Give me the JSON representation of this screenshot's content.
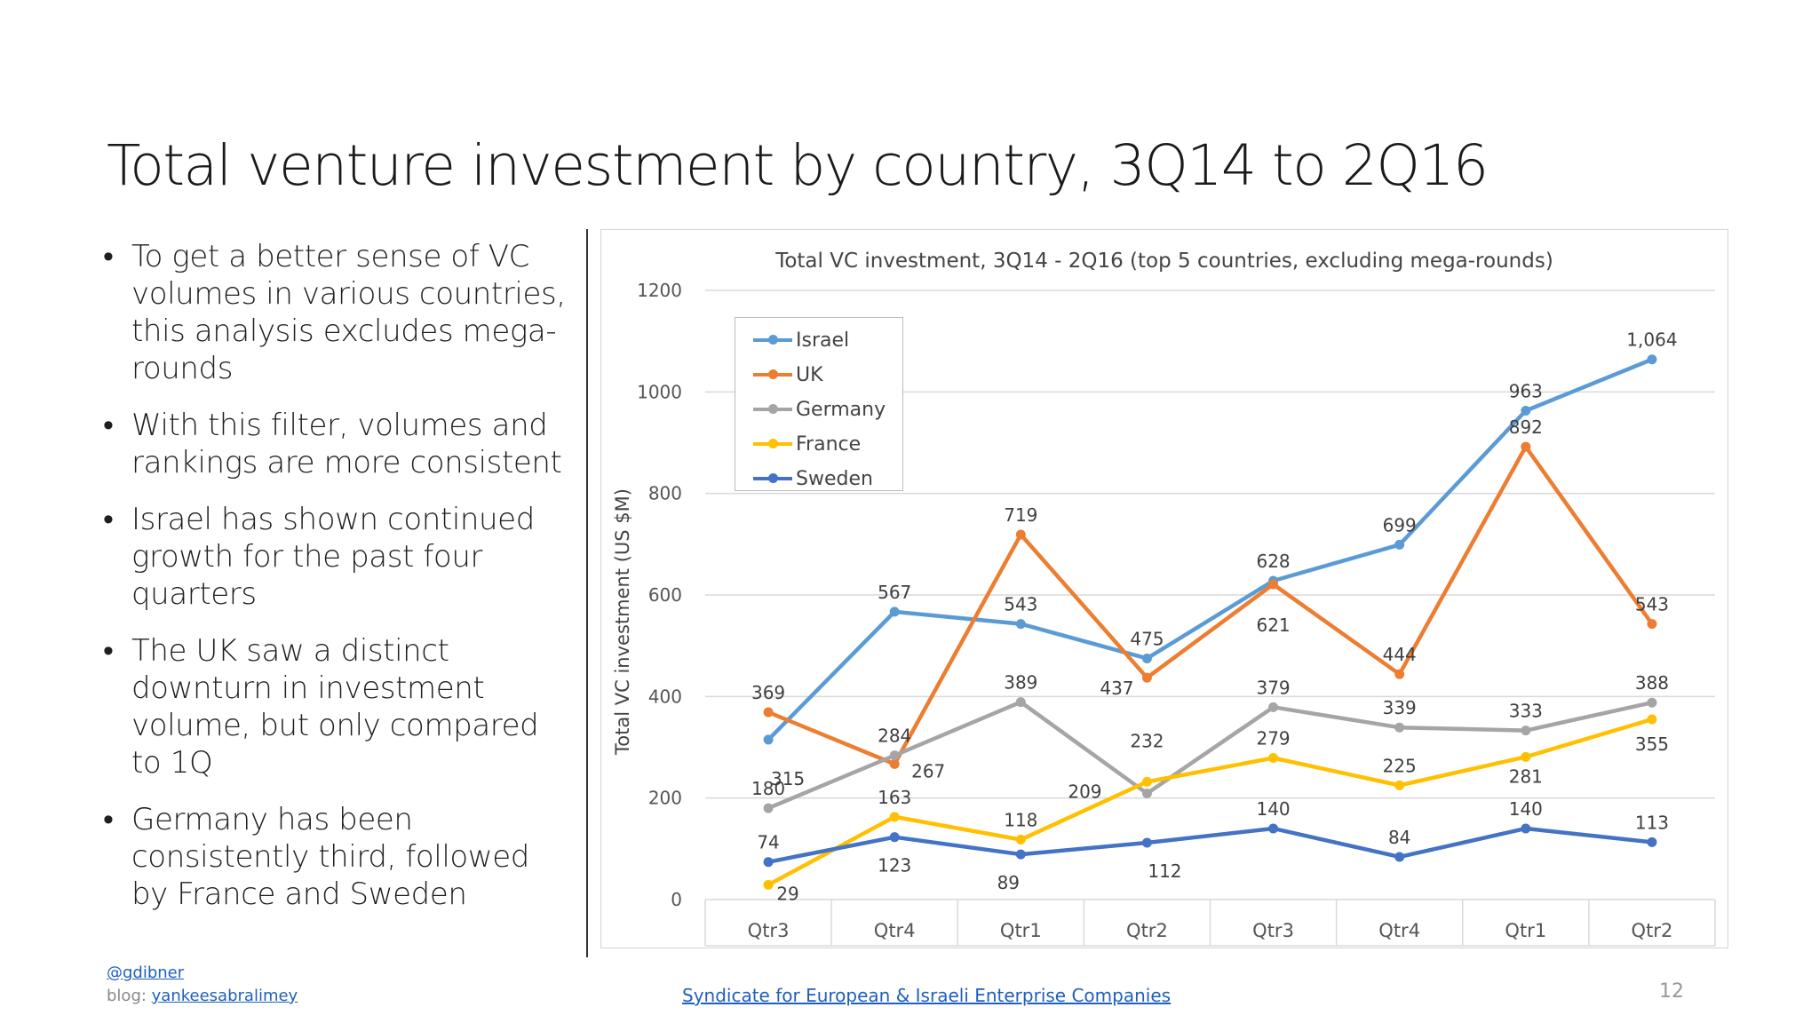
{
  "slide": {
    "title": "Total venture investment by country, 3Q14 to 2Q16",
    "bullets": [
      "To get a better sense of VC volumes in various countries, this analysis excludes mega-rounds",
      "With this filter, volumes and rankings are more consistent",
      "Israel has shown continued growth for the past four quarters",
      "The UK saw a distinct downturn in investment volume, but only compared to 1Q",
      "Germany has been consistently third, followed by France and Sweden"
    ],
    "bullet_symbol": "•",
    "page_number": "12"
  },
  "footer": {
    "handle": "@gdibner",
    "blog_prefix": "blog: ",
    "blog_link": "yankeesabralimey",
    "center_link": "Syndicate for European & Israeli Enterprise Companies"
  },
  "colors": {
    "Israel": "#5b9bd5",
    "UK": "#ed7d31",
    "Germany": "#a5a5a5",
    "France": "#ffc000",
    "Sweden": "#4472c4"
  },
  "chart_data": {
    "type": "line",
    "title": "Total VC investment,  3Q14 - 2Q16 (top 5 countries, excluding mega-rounds)",
    "xlabel": "",
    "ylabel": "Total VC investment (US $M)",
    "ylim": [
      0,
      1200
    ],
    "yticks": [
      "0",
      "200",
      "400",
      "600",
      "800",
      "1000",
      "1200"
    ],
    "grid": true,
    "legend_position": "top-left",
    "categories": [
      "Qtr3",
      "Qtr4",
      "Qtr1",
      "Qtr2",
      "Qtr3",
      "Qtr4",
      "Qtr1",
      "Qtr2"
    ],
    "series": [
      {
        "name": "Israel",
        "values": [
          315,
          567,
          543,
          475,
          628,
          699,
          963,
          1064
        ],
        "labels": [
          "315",
          "567",
          "543",
          "475",
          "628",
          "699",
          "963",
          "1,064"
        ]
      },
      {
        "name": "UK",
        "values": [
          369,
          267,
          719,
          437,
          621,
          444,
          892,
          543
        ],
        "labels": [
          "369",
          "267",
          "719",
          "437",
          "621",
          "444",
          "892",
          "543"
        ]
      },
      {
        "name": "Germany",
        "values": [
          180,
          284,
          389,
          209,
          379,
          339,
          333,
          388
        ],
        "labels": [
          "180",
          "284",
          "389",
          "209",
          "379",
          "339",
          "333",
          "388"
        ]
      },
      {
        "name": "France",
        "values": [
          29,
          163,
          118,
          232,
          279,
          225,
          281,
          355
        ],
        "labels": [
          "29",
          "163",
          "118",
          "232",
          "279",
          "225",
          "281",
          "355"
        ]
      },
      {
        "name": "Sweden",
        "values": [
          74,
          123,
          89,
          112,
          140,
          84,
          140,
          113
        ],
        "labels": [
          "74",
          "123",
          "89",
          "112",
          "140",
          "84",
          "140",
          "113"
        ]
      }
    ]
  }
}
